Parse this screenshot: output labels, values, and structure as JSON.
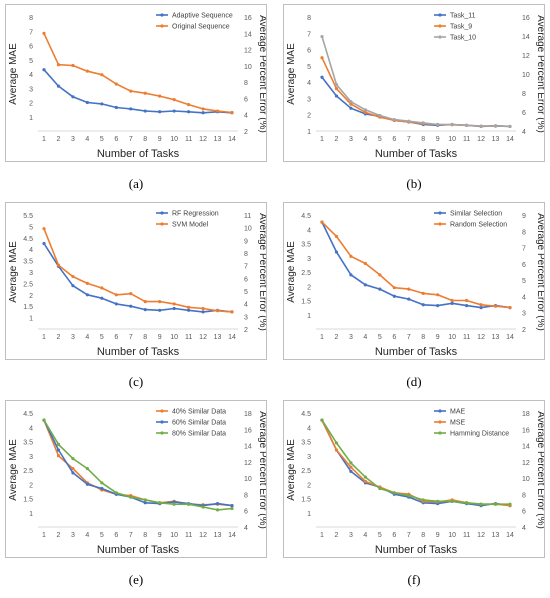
{
  "chart_data": [
    {
      "type": "line",
      "caption": "(a)",
      "x": [
        1,
        2,
        3,
        4,
        5,
        6,
        7,
        8,
        9,
        10,
        11,
        12,
        13,
        14
      ],
      "xlabel": "Number of Tasks",
      "ylabel": "Average MAE",
      "y2label": "Average Percent Error (%)",
      "ylim": [
        0,
        8
      ],
      "yticks": [
        "1",
        "2",
        "3",
        "4",
        "5",
        "6",
        "7",
        "8"
      ],
      "y2ticks": [
        "2",
        "4",
        "6",
        "8",
        "10",
        "12",
        "14",
        "16"
      ],
      "legend_position": "top-right",
      "series": [
        {
          "name": "Adaptive Sequence",
          "color": "#4472c4",
          "values": [
            4.3,
            3.15,
            2.4,
            2.0,
            1.9,
            1.65,
            1.55,
            1.4,
            1.35,
            1.4,
            1.35,
            1.28,
            1.35,
            1.28
          ]
        },
        {
          "name": "Original Sequence",
          "color": "#ed7d31",
          "values": [
            6.85,
            4.65,
            4.6,
            4.2,
            3.95,
            3.3,
            2.8,
            2.65,
            2.45,
            2.2,
            1.85,
            1.55,
            1.4,
            1.3
          ]
        }
      ]
    },
    {
      "type": "line",
      "caption": "(b)",
      "x": [
        1,
        2,
        3,
        4,
        5,
        6,
        7,
        8,
        9,
        10,
        11,
        12,
        13,
        14
      ],
      "xlabel": "Number of Tasks",
      "ylabel": "Average MAE",
      "y2label": "Average Percent Error (%)",
      "ylim": [
        1,
        8
      ],
      "yticks": [
        "1",
        "2",
        "3",
        "4",
        "5",
        "6",
        "7",
        "8"
      ],
      "y2ticks": [
        "4",
        "6",
        "8",
        "10",
        "12",
        "14",
        "16"
      ],
      "legend_position": "top-right",
      "series": [
        {
          "name": "Task_11",
          "color": "#4472c4",
          "values": [
            4.3,
            3.15,
            2.4,
            2.05,
            1.9,
            1.65,
            1.55,
            1.4,
            1.35,
            1.4,
            1.35,
            1.28,
            1.32,
            1.28
          ]
        },
        {
          "name": "Task_9",
          "color": "#ed7d31",
          "values": [
            5.5,
            3.6,
            2.65,
            2.15,
            1.85,
            1.65,
            1.55,
            1.45,
            1.4,
            1.38,
            1.35,
            1.3,
            1.3,
            1.28
          ]
        },
        {
          "name": "Task_10",
          "color": "#a5a5a5",
          "values": [
            6.8,
            3.85,
            2.8,
            2.3,
            1.95,
            1.7,
            1.6,
            1.5,
            1.4,
            1.4,
            1.35,
            1.3,
            1.3,
            1.28
          ]
        }
      ]
    },
    {
      "type": "line",
      "caption": "(c)",
      "x": [
        1,
        2,
        3,
        4,
        5,
        6,
        7,
        8,
        9,
        10,
        11,
        12,
        13,
        14
      ],
      "xlabel": "Number of Tasks",
      "ylabel": "Average MAE",
      "y2label": "Average Percent Error (%)",
      "ylim": [
        0.5,
        5.5
      ],
      "yticks": [
        "1",
        "1.5",
        "2",
        "2.5",
        "3",
        "3.5",
        "4",
        "4.5",
        "5",
        "5.5"
      ],
      "y2ticks": [
        "2",
        "3",
        "4",
        "5",
        "6",
        "7",
        "8",
        "9",
        "10",
        "11"
      ],
      "legend_position": "top-right",
      "series": [
        {
          "name": "RF Regression",
          "color": "#4472c4",
          "values": [
            4.25,
            3.25,
            2.4,
            2.0,
            1.85,
            1.6,
            1.5,
            1.35,
            1.32,
            1.4,
            1.32,
            1.25,
            1.32,
            1.25
          ]
        },
        {
          "name": "SVM Model",
          "color": "#ed7d31",
          "values": [
            4.9,
            3.3,
            2.8,
            2.5,
            2.3,
            2.0,
            2.05,
            1.7,
            1.7,
            1.6,
            1.45,
            1.4,
            1.3,
            1.25
          ]
        }
      ]
    },
    {
      "type": "line",
      "caption": "(d)",
      "x": [
        1,
        2,
        3,
        4,
        5,
        6,
        7,
        8,
        9,
        10,
        11,
        12,
        13,
        14
      ],
      "xlabel": "Number of Tasks",
      "ylabel": "Average MAE",
      "y2label": "Average Percent Error (%)",
      "ylim": [
        0.5,
        4.5
      ],
      "yticks": [
        "1",
        "1.5",
        "2",
        "2.5",
        "3",
        "3.5",
        "4",
        "4.5"
      ],
      "y2ticks": [
        "2",
        "3",
        "4",
        "5",
        "6",
        "7",
        "8",
        "9"
      ],
      "legend_position": "top-right",
      "series": [
        {
          "name": "Similar Selection",
          "color": "#4472c4",
          "values": [
            4.25,
            3.2,
            2.4,
            2.05,
            1.9,
            1.65,
            1.55,
            1.35,
            1.32,
            1.4,
            1.32,
            1.25,
            1.32,
            1.25
          ]
        },
        {
          "name": "Random Selection",
          "color": "#ed7d31",
          "values": [
            4.25,
            3.75,
            3.05,
            2.8,
            2.4,
            1.95,
            1.9,
            1.75,
            1.7,
            1.5,
            1.5,
            1.35,
            1.3,
            1.25
          ]
        }
      ]
    },
    {
      "type": "line",
      "caption": "(e)",
      "x": [
        1,
        2,
        3,
        4,
        5,
        6,
        7,
        8,
        9,
        10,
        11,
        12,
        13,
        14
      ],
      "xlabel": "Number of Tasks",
      "ylabel": "Average MAE",
      "y2label": "Average Percent Error (%)",
      "ylim": [
        0.5,
        4.5
      ],
      "yticks": [
        "1",
        "1.5",
        "2",
        "2.5",
        "3",
        "3.5",
        "4",
        "4.5"
      ],
      "y2ticks": [
        "4",
        "6",
        "8",
        "10",
        "12",
        "14",
        "16",
        "18"
      ],
      "legend_position": "top-right",
      "series": [
        {
          "name": "40% Similar Data",
          "color": "#ed7d31",
          "values": [
            4.25,
            3.0,
            2.55,
            2.05,
            1.8,
            1.65,
            1.6,
            1.45,
            1.35,
            1.4,
            1.3,
            1.28,
            1.3,
            1.25
          ]
        },
        {
          "name": "60% Similar Data",
          "color": "#4472c4",
          "values": [
            4.25,
            3.2,
            2.4,
            2.0,
            1.85,
            1.65,
            1.55,
            1.35,
            1.32,
            1.38,
            1.32,
            1.25,
            1.32,
            1.25
          ]
        },
        {
          "name": "80% Similar Data",
          "color": "#70ad47",
          "values": [
            4.25,
            3.4,
            2.9,
            2.55,
            2.05,
            1.7,
            1.55,
            1.45,
            1.35,
            1.3,
            1.3,
            1.2,
            1.1,
            1.15
          ]
        }
      ]
    },
    {
      "type": "line",
      "caption": "(f)",
      "x": [
        1,
        2,
        3,
        4,
        5,
        6,
        7,
        8,
        9,
        10,
        11,
        12,
        13,
        14
      ],
      "xlabel": "Number of Tasks",
      "ylabel": "Average MAE",
      "y2label": "Average Percent Error (%)",
      "ylim": [
        0.5,
        4.5
      ],
      "yticks": [
        "1",
        "1.5",
        "2",
        "2.5",
        "3",
        "3.5",
        "4",
        "4.5"
      ],
      "y2ticks": [
        "4",
        "6",
        "8",
        "10",
        "12",
        "14",
        "16",
        "18"
      ],
      "legend_position": "top-right",
      "series": [
        {
          "name": "MAE",
          "color": "#4472c4",
          "values": [
            4.25,
            3.2,
            2.45,
            2.05,
            1.9,
            1.65,
            1.55,
            1.35,
            1.32,
            1.4,
            1.32,
            1.25,
            1.32,
            1.25
          ]
        },
        {
          "name": "MSE",
          "color": "#ed7d31",
          "values": [
            4.25,
            3.2,
            2.6,
            2.1,
            1.9,
            1.7,
            1.65,
            1.4,
            1.38,
            1.45,
            1.35,
            1.3,
            1.3,
            1.25
          ]
        },
        {
          "name": "Hamming Distance",
          "color": "#70ad47",
          "values": [
            4.25,
            3.45,
            2.75,
            2.25,
            1.85,
            1.7,
            1.6,
            1.45,
            1.4,
            1.4,
            1.35,
            1.3,
            1.3,
            1.3
          ]
        }
      ]
    }
  ]
}
